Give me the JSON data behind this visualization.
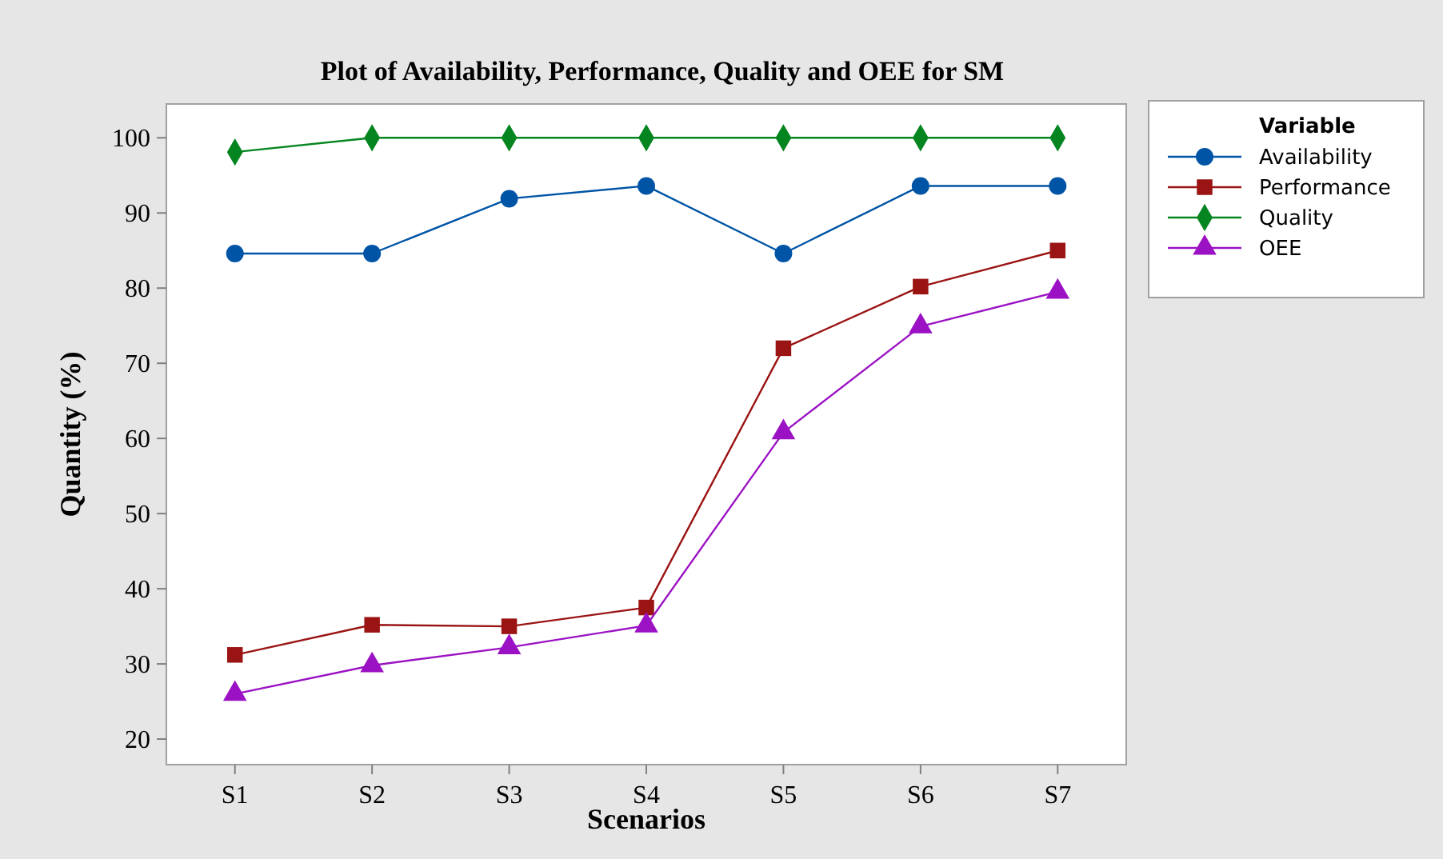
{
  "chart_data": {
    "type": "line",
    "title": "Plot of Availability, Performance, Quality and OEE for SM",
    "xlabel": "Scenarios",
    "ylabel": "Quantity (%)",
    "legend_title": "Variable",
    "categories": [
      "S1",
      "S2",
      "S3",
      "S4",
      "S5",
      "S6",
      "S7"
    ],
    "series": [
      {
        "name": "Availability",
        "color": "#0054a6",
        "marker": "circle",
        "values": [
          84.6,
          84.6,
          91.9,
          93.6,
          84.6,
          93.6,
          93.6
        ]
      },
      {
        "name": "Performance",
        "color": "#9b1414",
        "marker": "square",
        "values": [
          31.2,
          35.2,
          35.0,
          37.5,
          72.0,
          80.2,
          85.0
        ]
      },
      {
        "name": "Quality",
        "color": "#05851f",
        "marker": "diamond",
        "values": [
          98.1,
          100,
          100,
          100,
          100,
          100,
          100
        ]
      },
      {
        "name": "OEE",
        "color": "#9b12c4",
        "marker": "triangle",
        "values": [
          26.0,
          29.8,
          32.2,
          35.1,
          60.8,
          74.9,
          79.5
        ]
      }
    ],
    "ylim": [
      16.6,
      104.5
    ],
    "yticks": [
      20,
      30,
      40,
      50,
      60,
      70,
      80,
      90,
      100
    ],
    "grid": false,
    "legend": "top right",
    "line_style": "solid"
  }
}
